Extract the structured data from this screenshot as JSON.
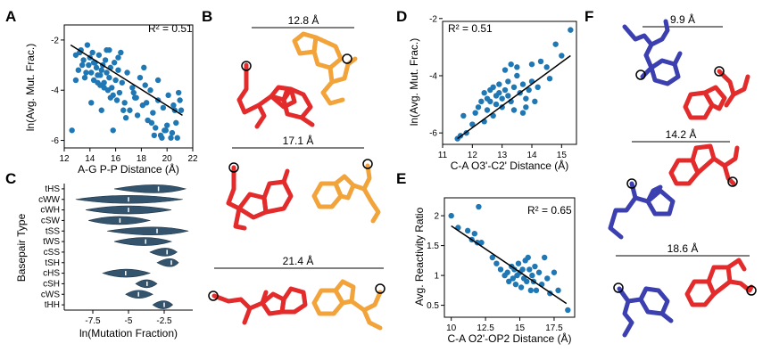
{
  "panels": {
    "A": "A",
    "B": "B",
    "C": "C",
    "D": "D",
    "E": "E",
    "F": "F"
  },
  "colors": {
    "point": "#1f77b4",
    "violin": "#34546e",
    "red": "#e32b2b",
    "orange": "#f2a33a",
    "blue": "#3b3fb0"
  },
  "structures": {
    "B": [
      "12.8 Å",
      "17.1 Å",
      "21.4 Å"
    ],
    "F": [
      "9.9 Å",
      "14.2 Å",
      "18.6 Å"
    ]
  },
  "chart_data": [
    {
      "id": "A",
      "type": "scatter",
      "xlabel": "A-G P-P Distance (Å)",
      "ylabel": "ln(Avg. Mut. Frac.)",
      "annotation": "R² = 0.51",
      "xlim": [
        12,
        22
      ],
      "ylim": [
        -6.3,
        -1.4
      ],
      "xticks": [
        12,
        14,
        16,
        18,
        20,
        22
      ],
      "yticks": [
        -2,
        -4,
        -6
      ],
      "fit": [
        [
          12.5,
          -2.2
        ],
        [
          21.2,
          -5.0
        ]
      ],
      "x": [
        12.6,
        12.9,
        13.1,
        13.3,
        13.5,
        13.6,
        13.8,
        13.9,
        14.0,
        14.1,
        14.2,
        14.3,
        14.4,
        14.5,
        14.6,
        14.7,
        14.8,
        14.9,
        15.0,
        15.1,
        15.2,
        15.3,
        15.4,
        15.5,
        15.6,
        15.7,
        15.8,
        15.9,
        16.0,
        16.1,
        16.2,
        16.3,
        16.5,
        16.7,
        16.9,
        17.1,
        17.3,
        17.5,
        17.7,
        17.9,
        18.1,
        18.3,
        18.5,
        18.7,
        18.9,
        19.1,
        19.3,
        19.5,
        19.7,
        19.9,
        20.1,
        20.3,
        20.5,
        20.7,
        20.9,
        21.1,
        13.2,
        14.1,
        14.9,
        15.5,
        16.2,
        18.2,
        19.6,
        20.4,
        15.8,
        17.6,
        13.7,
        14.6,
        15.3,
        19.0,
        20.8,
        16.6,
        18.8,
        21.0,
        12.9,
        14.3,
        15.1,
        16.4,
        17.4,
        19.3,
        20.0,
        20.6,
        13.4,
        14.8,
        15.6,
        16.8,
        18.4,
        19.8
      ],
      "y": [
        -5.6,
        -2.6,
        -3.2,
        -2.4,
        -2.8,
        -3.5,
        -2.2,
        -3.0,
        -2.7,
        -3.3,
        -2.5,
        -3.6,
        -2.9,
        -3.1,
        -3.4,
        -2.6,
        -3.8,
        -3.2,
        -3.0,
        -3.7,
        -2.8,
        -3.3,
        -4.0,
        -3.5,
        -3.1,
        -3.9,
        -4.2,
        -2.9,
        -3.6,
        -4.4,
        -3.2,
        -4.1,
        -3.7,
        -4.5,
        -3.3,
        -4.8,
        -3.9,
        -4.3,
        -5.0,
        -3.5,
        -4.6,
        -3.8,
        -5.2,
        -4.0,
        -4.9,
        -5.5,
        -3.6,
        -5.8,
        -4.7,
        -5.6,
        -4.2,
        -5.9,
        -4.6,
        -5.3,
        -4.1,
        -4.8,
        -2.5,
        -4.5,
        -4.8,
        -2.4,
        -2.7,
        -3.1,
        -5.9,
        -5.7,
        -5.6,
        -4.3,
        -3.3,
        -3.7,
        -2.4,
        -5.8,
        -5.9,
        -4.8,
        -5.3,
        -4.4,
        -3.6,
        -2.9,
        -3.9,
        -2.5,
        -4.1,
        -4.4,
        -5.4,
        -4.8,
        -3.0,
        -3.4,
        -4.3,
        -5.1,
        -4.5,
        -5.6
      ]
    },
    {
      "id": "C",
      "type": "violin",
      "xlabel": "ln(Mutation Fraction)",
      "ylabel": "Basepair Type",
      "xlim": [
        -9.5,
        -0.5
      ],
      "xticks": [
        -7.5,
        -5.0,
        -2.5
      ],
      "categories": [
        "tHS",
        "cWW",
        "cWH",
        "cSW",
        "tSS",
        "tWS",
        "cSS",
        "tSH",
        "cHS",
        "cSH",
        "cWS",
        "tHH"
      ],
      "medians": [
        -2.9,
        -5.0,
        -5.0,
        -5.6,
        -3.0,
        -3.8,
        -2.3,
        -2.0,
        -5.2,
        -3.7,
        -4.3,
        -2.5
      ],
      "ranges": [
        [
          -6.0,
          -1.0
        ],
        [
          -8.7,
          -1.2
        ],
        [
          -8.0,
          -2.0
        ],
        [
          -7.8,
          -3.5
        ],
        [
          -6.5,
          -0.8
        ],
        [
          -6.0,
          -2.0
        ],
        [
          -3.5,
          -1.6
        ],
        [
          -3.0,
          -1.5
        ],
        [
          -6.8,
          -3.5
        ],
        [
          -4.5,
          -3.0
        ],
        [
          -5.2,
          -3.3
        ],
        [
          -3.3,
          -1.9
        ]
      ]
    },
    {
      "id": "D",
      "type": "scatter",
      "xlabel": "C-A O3'-C2' Distance (Å)",
      "ylabel": "ln(Avg. Mut. Frac.)",
      "annotation": "R² = 0.51",
      "xlim": [
        11,
        15.5
      ],
      "ylim": [
        -6.4,
        -2.1
      ],
      "xticks": [
        11,
        12,
        13,
        14,
        15
      ],
      "yticks": [
        -2,
        -4,
        -6
      ],
      "fit": [
        [
          11.5,
          -6.2
        ],
        [
          15.3,
          -3.3
        ]
      ],
      "x": [
        11.5,
        11.6,
        11.7,
        11.8,
        12.0,
        12.1,
        12.2,
        12.3,
        12.4,
        12.4,
        12.5,
        12.5,
        12.6,
        12.6,
        12.7,
        12.7,
        12.8,
        12.8,
        12.9,
        12.9,
        13.0,
        13.0,
        13.1,
        13.1,
        13.2,
        13.2,
        13.3,
        13.3,
        13.4,
        13.4,
        13.5,
        13.5,
        13.6,
        13.7,
        13.7,
        13.8,
        13.8,
        13.9,
        14.0,
        14.0,
        14.1,
        14.2,
        14.3,
        14.5,
        14.6,
        14.8,
        15.0,
        15.3
      ],
      "y": [
        -6.2,
        -6.1,
        -5.4,
        -6.0,
        -5.7,
        -5.3,
        -5.1,
        -4.9,
        -4.6,
        -5.6,
        -4.8,
        -5.2,
        -4.5,
        -4.9,
        -4.4,
        -5.4,
        -4.7,
        -5.0,
        -4.3,
        -4.6,
        -5.1,
        -4.8,
        -4.5,
        -3.8,
        -4.2,
        -4.7,
        -4.9,
        -3.6,
        -4.4,
        -5.2,
        -4.0,
        -3.7,
        -4.6,
        -4.3,
        -5.3,
        -4.8,
        -5.1,
        -4.5,
        -3.6,
        -4.2,
        -4.9,
        -4.4,
        -3.5,
        -3.7,
        -4.1,
        -2.9,
        -3.3,
        -2.4
      ]
    },
    {
      "id": "E",
      "type": "scatter",
      "xlabel": "C-A O2'-OP2 Distance (Å)",
      "ylabel": "Avg. Reactivity Ratio",
      "annotation": "R² = 0.65",
      "xlim": [
        9.5,
        19
      ],
      "ylim": [
        0.3,
        2.3
      ],
      "xticks": [
        10,
        12.5,
        15,
        17.5
      ],
      "yticks": [
        0.5,
        1.0,
        1.5,
        2.0
      ],
      "fit": [
        [
          10,
          1.83
        ],
        [
          18.4,
          0.53
        ]
      ],
      "x": [
        10.0,
        10.5,
        11.2,
        11.5,
        11.7,
        11.9,
        12.0,
        12.2,
        13.0,
        13.3,
        13.6,
        13.9,
        14.1,
        14.2,
        14.4,
        14.5,
        14.6,
        14.7,
        14.8,
        14.9,
        15.0,
        15.1,
        15.2,
        15.3,
        15.4,
        15.5,
        15.6,
        15.7,
        15.8,
        15.9,
        16.0,
        16.1,
        16.2,
        16.4,
        16.6,
        16.8,
        17.0,
        17.2,
        17.5,
        17.8,
        18.5
      ],
      "y": [
        2.0,
        1.8,
        1.75,
        1.6,
        1.7,
        1.55,
        2.15,
        1.55,
        1.3,
        1.2,
        1.1,
        1.0,
        1.05,
        0.9,
        1.15,
        0.95,
        1.1,
        0.85,
        1.0,
        1.2,
        1.05,
        0.8,
        1.1,
        0.95,
        1.25,
        0.9,
        1.3,
        1.1,
        0.75,
        1.0,
        0.9,
        1.15,
        0.75,
        1.05,
        0.85,
        1.3,
        0.95,
        0.7,
        1.05,
        0.75,
        0.42
      ]
    }
  ]
}
